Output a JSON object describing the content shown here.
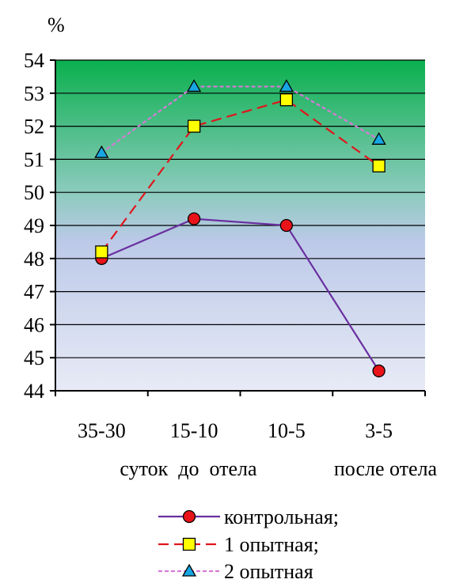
{
  "chart_data": {
    "type": "line",
    "ylabel": "%",
    "ylim": [
      44,
      54
    ],
    "yticks": [
      "54",
      "53",
      "52",
      "51",
      "50",
      "49",
      "48",
      "47",
      "46",
      "45",
      "44"
    ],
    "categories": [
      "35-30",
      "15-10",
      "10-5",
      "3-5"
    ],
    "group_labels": [
      "суток  до  отела",
      "после отела"
    ],
    "grid": true,
    "legend_position": "bottom",
    "series": [
      {
        "name": "контрольная;",
        "values": [
          48.0,
          49.2,
          49.0,
          44.6
        ],
        "color": "#6a2fa0",
        "marker": "circle",
        "marker_color": "#e8141a",
        "dash": "solid"
      },
      {
        "name": "1 опытная;",
        "values": [
          48.2,
          52.0,
          52.8,
          50.8
        ],
        "color": "#e0151b",
        "marker": "square",
        "marker_color": "#ffff00",
        "dash": "dashed"
      },
      {
        "name": "2 опытная",
        "values": [
          51.2,
          53.2,
          53.2,
          51.6
        ],
        "color": "#d67ad6",
        "marker": "triangle",
        "marker_color": "#17a6e2",
        "dash": "dotted"
      }
    ],
    "background_gradient": [
      "#0ab04e",
      "#8ccbbd",
      "#bcc9e8",
      "#e8ebf6"
    ]
  }
}
